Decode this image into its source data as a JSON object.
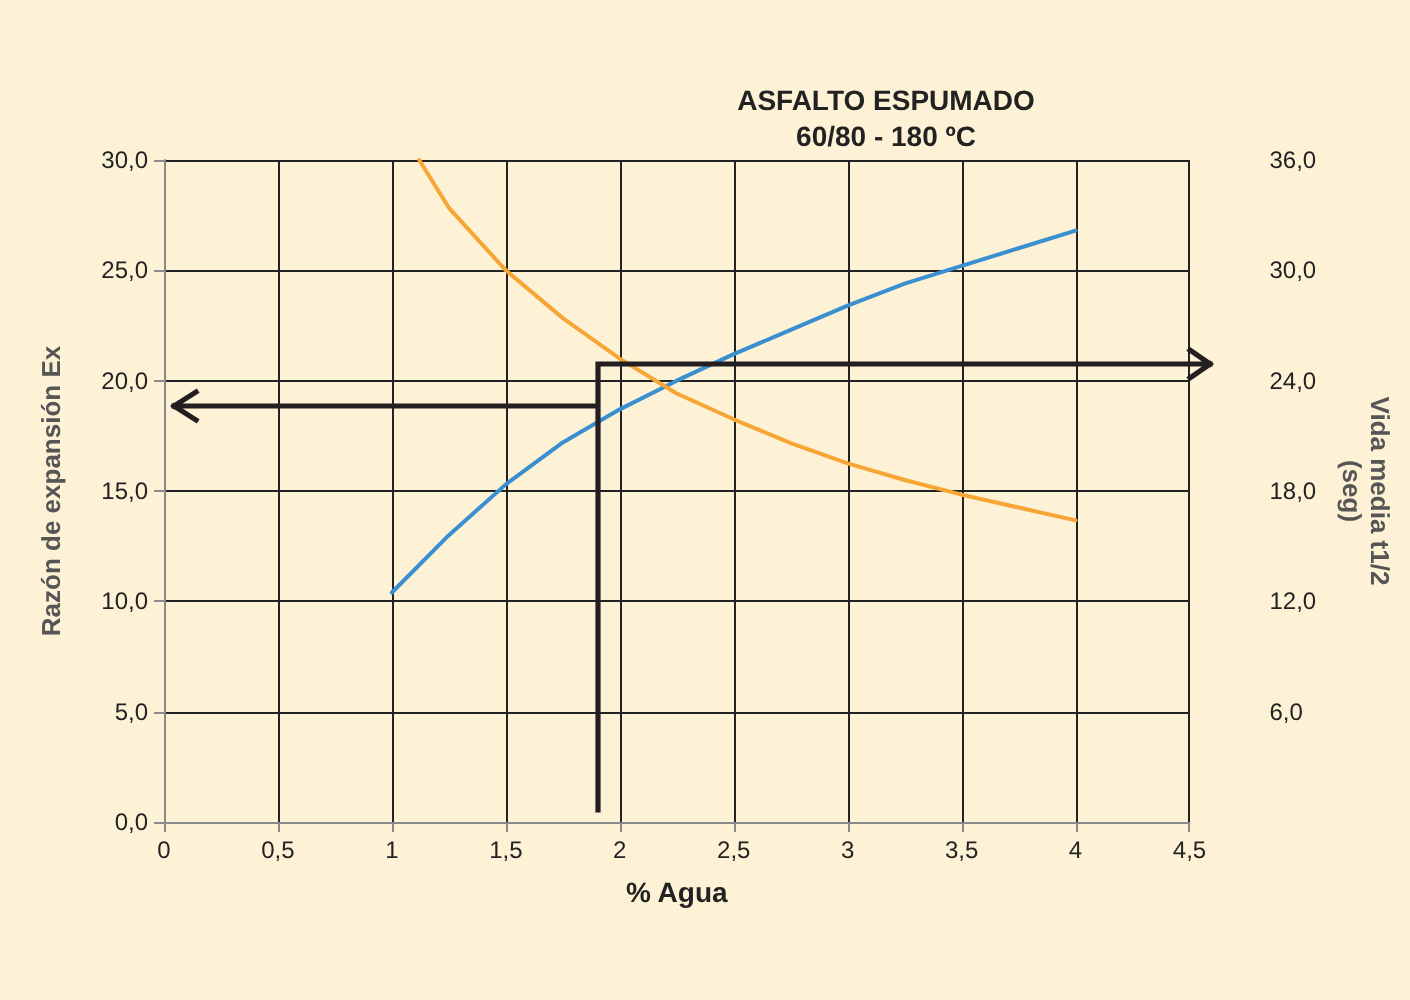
{
  "chart_data": {
    "type": "line",
    "title": "ASFALTO ESPUMADO\n60/80 - 180 ºC",
    "xlabel": "% Agua",
    "ylabel": "Razón de expansión Ex",
    "y2label": "Vida media t1/2\n(seg)",
    "xlim": [
      0,
      4.5
    ],
    "xticks": [
      0,
      {
        "value": 0.5,
        "label": "0,5"
      },
      1,
      {
        "value": 1.5,
        "label": "1,5"
      },
      2,
      {
        "value": 2.5,
        "label": "2,5"
      },
      3,
      {
        "value": 3.5,
        "label": "3,5"
      },
      4,
      {
        "value": 4.5,
        "label": "4,5"
      }
    ],
    "ylim": [
      0,
      30
    ],
    "yticks": [
      {
        "value": 0,
        "label": "0,0"
      },
      {
        "value": 5,
        "label": "5,0"
      },
      {
        "value": 10,
        "label": "10,0"
      },
      {
        "value": 15,
        "label": "15,0"
      },
      {
        "value": 20,
        "label": "20,0"
      },
      {
        "value": 25,
        "label": "25,0"
      },
      {
        "value": 30,
        "label": "30,0"
      }
    ],
    "y2lim": [
      0,
      36
    ],
    "y2ticks": [
      {
        "value": 6,
        "label": "6,0"
      },
      {
        "value": 12,
        "label": "12,0"
      },
      {
        "value": 18,
        "label": "18,0"
      },
      {
        "value": 24,
        "label": "24,0"
      },
      {
        "value": 30,
        "label": "30,0"
      },
      {
        "value": 36,
        "label": "36,0"
      }
    ],
    "grid": true,
    "marker": "none",
    "line_style": "solid",
    "series": [
      {
        "color": "#3a8fd0",
        "x": [
          1,
          1.25,
          1.5,
          1.75,
          2,
          2.25,
          2.5,
          2.75,
          3,
          3.25,
          3.5,
          3.75,
          4
        ],
        "values": [
          10.4,
          13.0,
          15.3,
          17.2,
          18.7,
          20.0,
          21.2,
          22.3,
          23.4,
          24.4,
          25.2,
          26.0,
          26.8
        ]
      },
      {
        "color": "#f7a535",
        "axis": "y2",
        "x": [
          1.12,
          1.25,
          1.5,
          1.75,
          2,
          2.25,
          2.5,
          2.75,
          3,
          3.25,
          3.5,
          3.75,
          4
        ],
        "values": [
          36,
          33.4,
          30.0,
          27.4,
          25.2,
          23.3,
          21.9,
          20.6,
          19.5,
          18.6,
          17.8,
          17.1,
          16.4
        ]
      }
    ]
  }
}
